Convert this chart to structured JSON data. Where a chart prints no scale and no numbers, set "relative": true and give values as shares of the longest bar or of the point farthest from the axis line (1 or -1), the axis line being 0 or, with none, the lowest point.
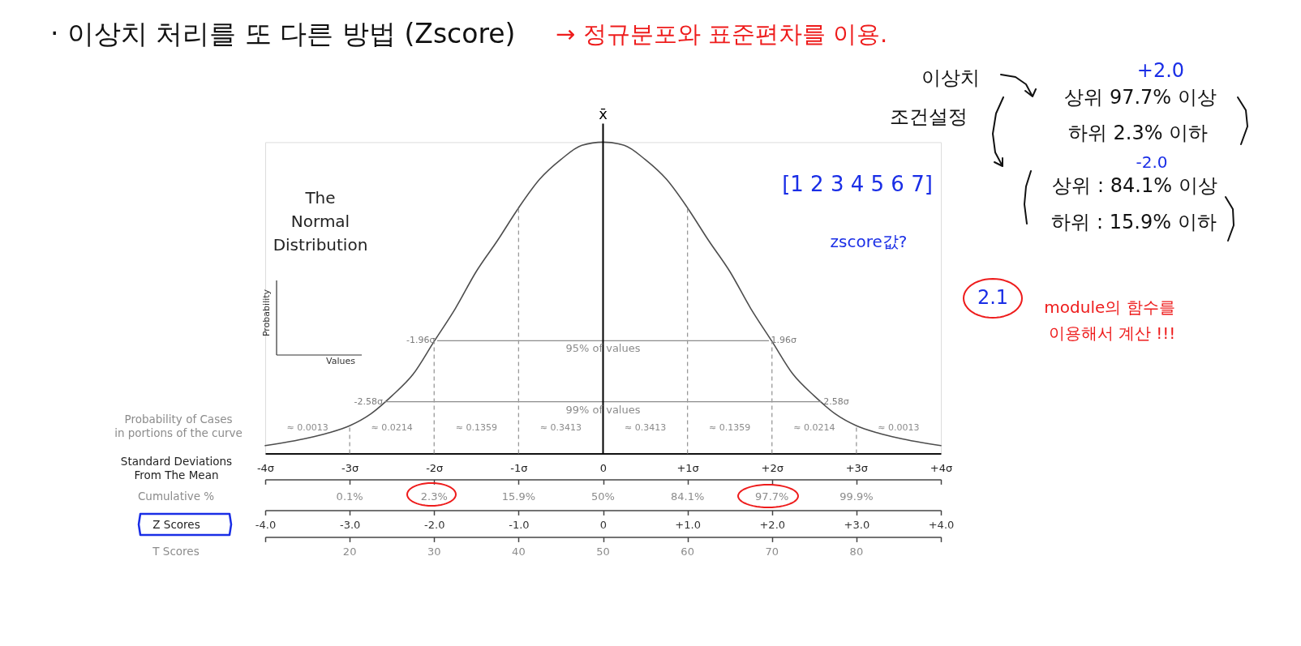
{
  "chart_data": {
    "type": "line",
    "title": "The Normal Distribution",
    "relative": true,
    "xlabel": "Standard Deviations From The Mean",
    "x2label": "Z Scores",
    "xlim": [
      -4,
      4
    ],
    "xticks": [
      {
        "value": -4,
        "label": "-4σ"
      },
      {
        "value": -3,
        "label": "-3σ"
      },
      {
        "value": -2,
        "label": "-2σ"
      },
      {
        "value": -1,
        "label": "-1σ"
      },
      0,
      {
        "value": 1,
        "label": "+1σ"
      },
      {
        "value": 2,
        "label": "+2σ"
      },
      {
        "value": 3,
        "label": "+3σ"
      },
      {
        "value": 4,
        "label": "+4σ"
      }
    ],
    "x2lim": [
      -4,
      4
    ],
    "x2ticks": [
      {
        "value": -4,
        "label": "-4.0"
      },
      {
        "value": -3,
        "label": "-3.0"
      },
      {
        "value": -2,
        "label": "-2.0"
      },
      {
        "value": -1,
        "label": "-1.0"
      },
      0,
      {
        "value": 1,
        "label": "+1.0"
      },
      {
        "value": 2,
        "label": "+2.0"
      },
      {
        "value": 3,
        "label": "+3.0"
      },
      {
        "value": 4,
        "label": "+4.0"
      }
    ],
    "series": [
      {
        "color": "#4d4d4d",
        "x": [
          -4,
          -3.5,
          -3.25,
          -3,
          -2.75,
          -2.5,
          -2.25,
          -2,
          -1.75,
          -1.5,
          -1.25,
          -1,
          -0.75,
          -0.5,
          -0.25,
          0,
          0.25,
          0.5,
          0.75,
          1,
          1.25,
          1.5,
          1.75,
          2,
          2.25,
          2.5,
          2.75,
          3,
          3.25,
          3.5,
          4
        ],
        "values": [
          0.025,
          0.049,
          0.066,
          0.089,
          0.127,
          0.185,
          0.254,
          0.36,
          0.465,
          0.585,
          0.684,
          0.789,
          0.881,
          0.944,
          0.99,
          1,
          0.99,
          0.944,
          0.881,
          0.789,
          0.684,
          0.585,
          0.465,
          0.36,
          0.254,
          0.185,
          0.127,
          0.089,
          0.066,
          0.049,
          0.025
        ]
      },
      {
        "color": "#8c8c8c",
        "x": [
          -1.96,
          1.96
        ],
        "values": [
          0.362,
          0.362
        ]
      },
      {
        "color": "#8c8c8c",
        "x": [
          -2.58,
          2.58
        ],
        "values": [
          0.166,
          0.166
        ]
      }
    ],
    "ref_lines": [
      {
        "axis": "x",
        "value": 0,
        "label": "x̄",
        "color": "#000000"
      },
      {
        "axis": "x",
        "value": -3,
        "color": "#999999",
        "line_style": "dashed"
      },
      {
        "axis": "x",
        "value": -2,
        "color": "#999999",
        "line_style": "dashed"
      },
      {
        "axis": "x",
        "value": -1,
        "color": "#999999",
        "line_style": "dashed"
      },
      {
        "axis": "x",
        "value": 1,
        "color": "#999999",
        "line_style": "dashed"
      },
      {
        "axis": "x",
        "value": 2,
        "color": "#999999",
        "line_style": "dashed"
      },
      {
        "axis": "x",
        "value": 3,
        "color": "#999999",
        "line_style": "dashed"
      }
    ],
    "annotations": [
      "· 이상치 처리를 또 다른 방법 (Zscore)",
      "→ 정규분포와 표준편차를 이용.",
      "이상치",
      "조건설정",
      "+2.0",
      "상위 97.7% 이상",
      "하위 2.3% 이하",
      "-2.0",
      "상위 : 84.1% 이상",
      "하위 : 15.9% 이하",
      "[1 2 3 4 5 6 7]",
      "zscore값?",
      "2.1",
      "module의 함수를",
      "이용해서 계산 !!!",
      "Probability of Cases",
      "in portions of the curve",
      "Probability",
      "Values",
      "≈ 0.0013",
      "≈ 0.0214",
      "≈ 0.1359",
      "≈ 0.3413",
      "≈ 0.3413",
      "≈ 0.1359",
      "≈ 0.0214",
      "≈ 0.0013",
      "Cumulative %",
      "0.1%",
      "2.3%",
      "15.9%",
      "50%",
      "84.1%",
      "97.7%",
      "99.9%",
      "T Scores",
      "20",
      "30",
      "40",
      "50",
      "60",
      "70",
      "80",
      {
        "text": "95% of values",
        "x": 0,
        "y": 0.362
      },
      {
        "text": "-1.96σ",
        "x": -1.96,
        "y": 0.362
      },
      {
        "text": "1.96σ",
        "x": 1.96,
        "y": 0.362
      },
      {
        "text": "99% of values",
        "x": 0,
        "y": 0.166
      },
      {
        "text": "-2.58σ",
        "x": -2.58,
        "y": 0.166
      },
      {
        "text": "2.58σ",
        "x": 2.58,
        "y": 0.166
      }
    ]
  }
}
